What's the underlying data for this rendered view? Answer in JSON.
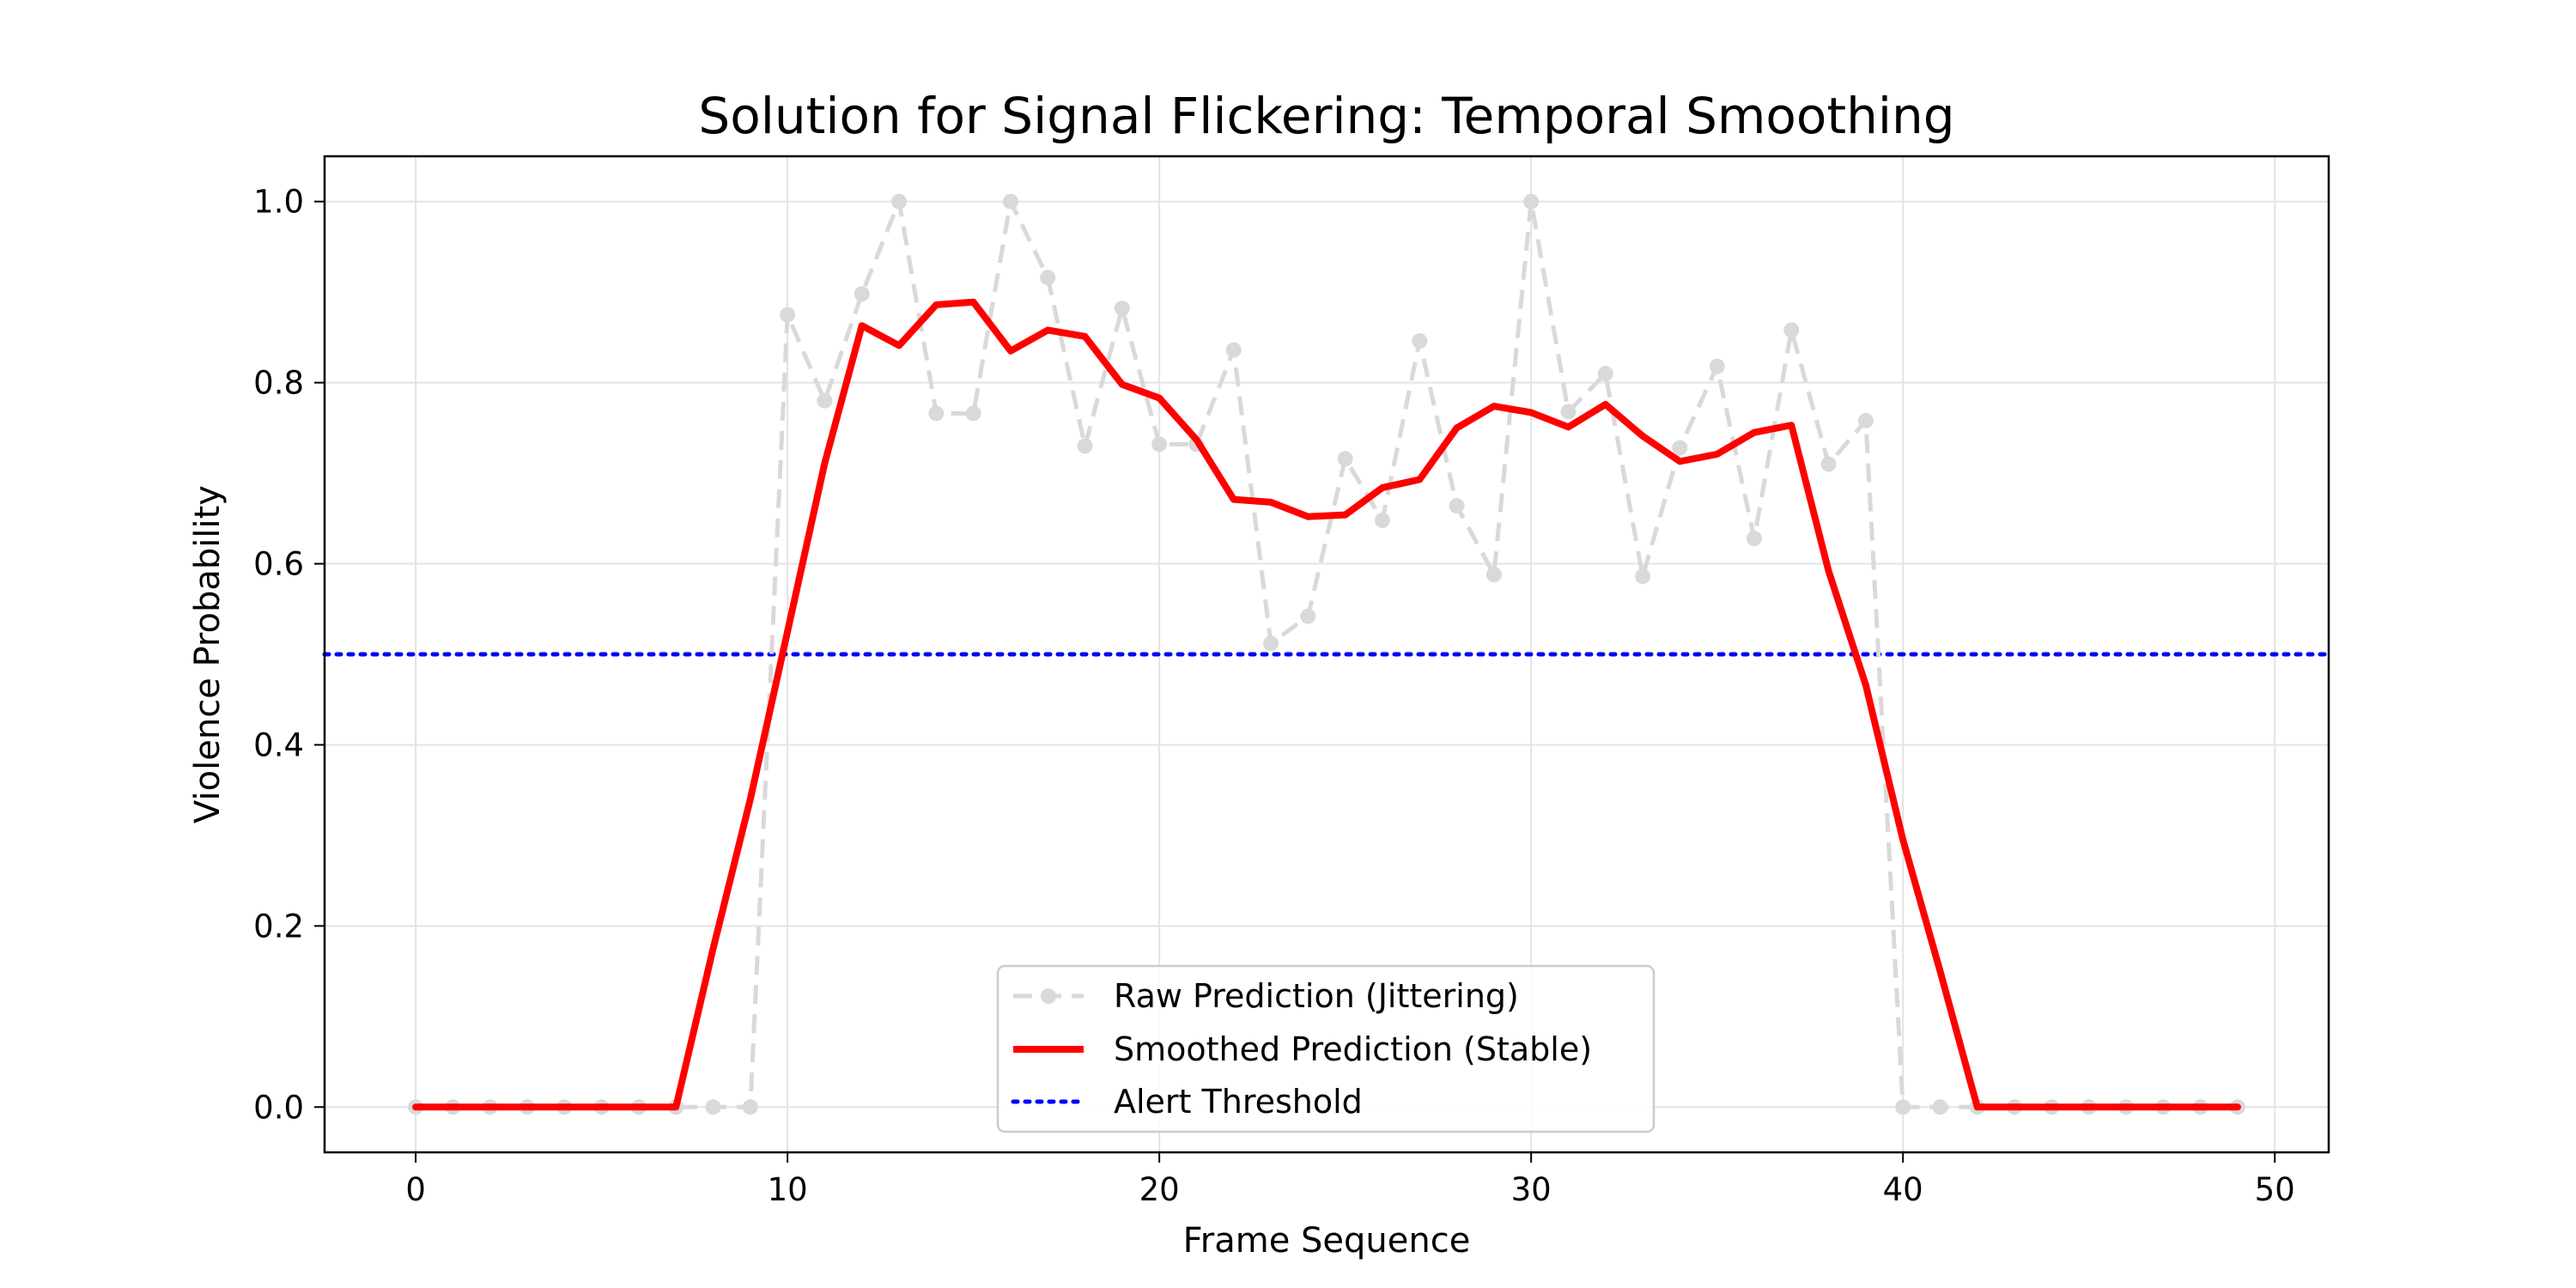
{
  "chart_data": {
    "type": "line",
    "title": "Solution for Signal Flickering: Temporal Smoothing",
    "xlabel": "Frame Sequence",
    "ylabel": "Violence Probability",
    "xlim": [
      -2.45,
      51.45
    ],
    "ylim": [
      -0.05,
      1.05
    ],
    "xticks": [
      0,
      10,
      20,
      30,
      40,
      50
    ],
    "yticks": [
      0.0,
      0.2,
      0.4,
      0.6,
      0.8,
      1.0
    ],
    "xtick_labels": [
      "0",
      "10",
      "20",
      "30",
      "40",
      "50"
    ],
    "ytick_labels": [
      "0.0",
      "0.2",
      "0.4",
      "0.6",
      "0.8",
      "1.0"
    ],
    "grid": true,
    "legend_position": "lower-center",
    "x": [
      0,
      1,
      2,
      3,
      4,
      5,
      6,
      7,
      8,
      9,
      10,
      11,
      12,
      13,
      14,
      15,
      16,
      17,
      18,
      19,
      20,
      21,
      22,
      23,
      24,
      25,
      26,
      27,
      28,
      29,
      30,
      31,
      32,
      33,
      34,
      35,
      36,
      37,
      38,
      39,
      40,
      41,
      42,
      43,
      44,
      45,
      46,
      47,
      48,
      49
    ],
    "series": [
      {
        "name": "Raw Prediction (Jittering)",
        "color": "#d9d9d9",
        "style": "dashed-with-markers",
        "values": [
          0,
          0,
          0,
          0,
          0,
          0,
          0,
          0,
          0,
          0,
          0.875,
          0.78,
          0.898,
          1.0,
          0.766,
          0.766,
          1.0,
          0.916,
          0.73,
          0.882,
          0.732,
          0.732,
          0.836,
          0.512,
          0.542,
          0.716,
          0.648,
          0.846,
          0.664,
          0.588,
          1.0,
          0.768,
          0.81,
          0.586,
          0.728,
          0.818,
          0.628,
          0.858,
          0.71,
          0.758,
          0,
          0,
          0,
          0,
          0,
          0,
          0,
          0,
          0,
          0
        ]
      },
      {
        "name": "Smoothed Prediction (Stable)",
        "color": "#ff0000",
        "style": "solid",
        "values": [
          0,
          0,
          0,
          0,
          0,
          0,
          0,
          0,
          0.175,
          0.34,
          0.525,
          0.711,
          0.863,
          0.841,
          0.886,
          0.889,
          0.835,
          0.858,
          0.851,
          0.798,
          0.783,
          0.737,
          0.671,
          0.668,
          0.652,
          0.654,
          0.684,
          0.693,
          0.75,
          0.774,
          0.767,
          0.751,
          0.776,
          0.741,
          0.713,
          0.721,
          0.745,
          0.753,
          0.592,
          0.466,
          0.295,
          0.15,
          0,
          0,
          0,
          0,
          0,
          0,
          0,
          0
        ]
      },
      {
        "name": "Alert Threshold",
        "color": "#0000ff",
        "style": "dotted-horizontal",
        "value": 0.5
      }
    ]
  }
}
